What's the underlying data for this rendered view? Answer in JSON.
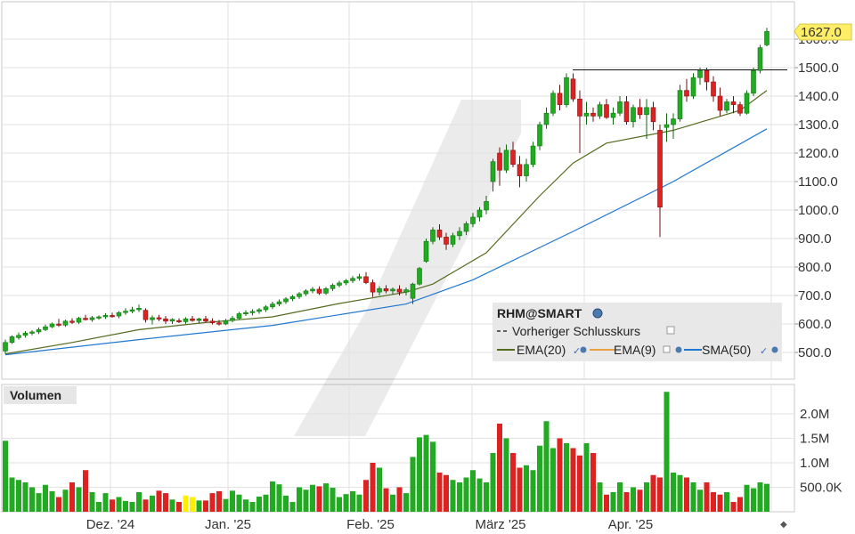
{
  "chart_data": [
    {
      "type": "candlestick",
      "title": "",
      "ylim": [
        470,
        1660
      ],
      "y_ticks": [
        "500.0",
        "600.0",
        "700.0",
        "800.0",
        "900.0",
        "1000.0",
        "1100.0",
        "1200.0",
        "1300.0",
        "1400.0",
        "1500.0",
        "1600.0"
      ],
      "last_price_label": "1627.0",
      "previous_close_level": 1492,
      "x_labels": [
        "Dez. '24",
        "Jan. '25",
        "Feb. '25",
        "März '25",
        "Apr. '25"
      ],
      "series": [
        {
          "name": "RHM@SMART",
          "columns": [
            "open",
            "high",
            "low",
            "close"
          ],
          "candles": [
            [
              505,
              545,
              495,
              535
            ],
            [
              535,
              560,
              530,
              555
            ],
            [
              552,
              570,
              545,
              560
            ],
            [
              560,
              575,
              552,
              568
            ],
            [
              568,
              578,
              560,
              572
            ],
            [
              572,
              588,
              565,
              580
            ],
            [
              580,
              598,
              575,
              590
            ],
            [
              590,
              605,
              585,
              600
            ],
            [
              600,
              618,
              590,
              596
            ],
            [
              596,
              615,
              590,
              610
            ],
            [
              610,
              620,
              600,
              606
            ],
            [
              606,
              625,
              600,
              620
            ],
            [
              620,
              632,
              612,
              615
            ],
            [
              615,
              628,
              608,
              622
            ],
            [
              622,
              630,
              615,
              625
            ],
            [
              625,
              638,
              618,
              630
            ],
            [
              630,
              640,
              622,
              628
            ],
            [
              628,
              645,
              620,
              640
            ],
            [
              640,
              655,
              632,
              645
            ],
            [
              645,
              660,
              638,
              650
            ],
            [
              650,
              668,
              642,
              655
            ],
            [
              648,
              655,
              605,
              615
            ],
            [
              615,
              630,
              598,
              622
            ],
            [
              622,
              632,
              610,
              618
            ],
            [
              618,
              628,
              600,
              610
            ],
            [
              610,
              620,
              600,
              616
            ],
            [
              612,
              620,
              603,
              608
            ],
            [
              608,
              624,
              600,
              618
            ],
            [
              618,
              628,
              608,
              612
            ],
            [
              612,
              622,
              602,
              618
            ],
            [
              618,
              628,
              606,
              610
            ],
            [
              610,
              620,
              598,
              604
            ],
            [
              604,
              614,
              594,
              600
            ],
            [
              600,
              618,
              596,
              612
            ],
            [
              612,
              628,
              606,
              620
            ],
            [
              620,
              642,
              614,
              636
            ],
            [
              636,
              648,
              628,
              640
            ],
            [
              640,
              652,
              630,
              644
            ],
            [
              644,
              656,
              636,
              650
            ],
            [
              650,
              666,
              642,
              660
            ],
            [
              660,
              678,
              652,
              670
            ],
            [
              670,
              686,
              662,
              678
            ],
            [
              678,
              694,
              670,
              688
            ],
            [
              688,
              702,
              680,
              696
            ],
            [
              696,
              712,
              688,
              706
            ],
            [
              706,
              722,
              698,
              716
            ],
            [
              716,
              730,
              708,
              722
            ],
            [
              722,
              732,
              702,
              708
            ],
            [
              708,
              730,
              702,
              724
            ],
            [
              724,
              742,
              716,
              736
            ],
            [
              736,
              752,
              728,
              744
            ],
            [
              744,
              758,
              736,
              752
            ],
            [
              752,
              768,
              744,
              760
            ],
            [
              760,
              776,
              752,
              766
            ],
            [
              766,
              782,
              740,
              745
            ],
            [
              745,
              756,
              695,
              712
            ],
            [
              712,
              732,
              700,
              724
            ],
            [
              724,
              736,
              708,
              716
            ],
            [
              716,
              728,
              704,
              722
            ],
            [
              722,
              736,
              700,
              712
            ],
            [
              712,
              728,
              700,
              720
            ],
            [
              690,
              745,
              670,
              740
            ],
            [
              740,
              800,
              735,
              795
            ],
            [
              820,
              900,
              815,
              890
            ],
            [
              890,
              940,
              880,
              930
            ],
            [
              930,
              950,
              895,
              905
            ],
            [
              905,
              920,
              860,
              880
            ],
            [
              880,
              920,
              870,
              910
            ],
            [
              910,
              940,
              895,
              925
            ],
            [
              925,
              960,
              912,
              952
            ],
            [
              952,
              990,
              940,
              975
            ],
            [
              975,
              1010,
              960,
              1000
            ],
            [
              1000,
              1050,
              985,
              1030
            ],
            [
              1100,
              1180,
              1065,
              1170
            ],
            [
              1200,
              1220,
              1085,
              1140
            ],
            [
              1140,
              1230,
              1130,
              1210
            ],
            [
              1210,
              1240,
              1150,
              1160
            ],
            [
              1160,
              1190,
              1080,
              1120
            ],
            [
              1120,
              1180,
              1100,
              1160
            ],
            [
              1160,
              1240,
              1150,
              1225
            ],
            [
              1225,
              1310,
              1210,
              1300
            ],
            [
              1300,
              1360,
              1285,
              1340
            ],
            [
              1340,
              1420,
              1330,
              1410
            ],
            [
              1410,
              1440,
              1350,
              1370
            ],
            [
              1370,
              1480,
              1360,
              1465
            ],
            [
              1460,
              1480,
              1380,
              1390
            ],
            [
              1390,
              1420,
              1200,
              1330
            ],
            [
              1330,
              1380,
              1300,
              1340
            ],
            [
              1340,
              1360,
              1310,
              1330
            ],
            [
              1330,
              1380,
              1320,
              1370
            ],
            [
              1370,
              1390,
              1320,
              1325
            ],
            [
              1325,
              1360,
              1300,
              1340
            ],
            [
              1340,
              1400,
              1330,
              1380
            ],
            [
              1380,
              1400,
              1300,
              1310
            ],
            [
              1310,
              1370,
              1290,
              1360
            ],
            [
              1360,
              1390,
              1320,
              1335
            ],
            [
              1335,
              1390,
              1250,
              1360
            ],
            [
              1360,
              1380,
              1280,
              1310
            ],
            [
              1280,
              1300,
              905,
              1010
            ],
            [
              1290,
              1340,
              1240,
              1300
            ],
            [
              1300,
              1340,
              1250,
              1320
            ],
            [
              1320,
              1440,
              1310,
              1420
            ],
            [
              1420,
              1460,
              1380,
              1400
            ],
            [
              1400,
              1480,
              1390,
              1465
            ],
            [
              1465,
              1500,
              1440,
              1490
            ],
            [
              1490,
              1500,
              1420,
              1450
            ],
            [
              1450,
              1470,
              1380,
              1400
            ],
            [
              1400,
              1430,
              1330,
              1350
            ],
            [
              1350,
              1390,
              1340,
              1380
            ],
            [
              1380,
              1400,
              1340,
              1370
            ],
            [
              1370,
              1380,
              1330,
              1340
            ],
            [
              1340,
              1420,
              1335,
              1410
            ],
            [
              1410,
              1500,
              1400,
              1490
            ],
            [
              1490,
              1580,
              1480,
              1570
            ],
            [
              1580,
              1640,
              1575,
              1627
            ]
          ]
        },
        {
          "name": "Vorheriger Schlusskurs",
          "style": "dashed"
        },
        {
          "name": "EMA(20)",
          "color": "#556b1e",
          "x_index": [
            0,
            10,
            20,
            30,
            40,
            50,
            60,
            64,
            72,
            80,
            85,
            90,
            100,
            105,
            110,
            114
          ],
          "values": [
            495,
            535,
            580,
            605,
            625,
            672,
            712,
            740,
            850,
            1050,
            1165,
            1235,
            1280,
            1315,
            1350,
            1420
          ]
        },
        {
          "name": "EMA(9)",
          "color": "#e8a040"
        },
        {
          "name": "SMA(50)",
          "color": "#1f77d0",
          "x_index": [
            0,
            20,
            40,
            60,
            70,
            85,
            100,
            114
          ],
          "values": [
            492,
            545,
            595,
            670,
            755,
            925,
            1100,
            1285
          ]
        }
      ]
    },
    {
      "type": "bar",
      "title": "Volumen",
      "y_ticks": [
        "500.0K",
        "1.0M",
        "1.5M",
        "2.0M"
      ],
      "ylim": [
        0,
        2500000
      ],
      "values": [
        1450000,
        700000,
        650000,
        600000,
        500000,
        380000,
        550000,
        420000,
        300000,
        450000,
        600000,
        500000,
        850000,
        400000,
        200000,
        380000,
        250000,
        300000,
        220000,
        200000,
        400000,
        250000,
        330000,
        430000,
        380000,
        250000,
        200000,
        330000,
        300000,
        230000,
        230000,
        380000,
        420000,
        260000,
        430000,
        350000,
        250000,
        200000,
        310000,
        350000,
        620000,
        560000,
        330000,
        200000,
        500000,
        450000,
        550000,
        520000,
        580000,
        490000,
        300000,
        360000,
        420000,
        350000,
        650000,
        1000000,
        900000,
        480000,
        350000,
        500000,
        380000,
        1120000,
        1520000,
        1570000,
        1430000,
        800000,
        750000,
        650000,
        600000,
        700000,
        850000,
        680000,
        600000,
        1200000,
        1800000,
        1500000,
        1200000,
        900000,
        950000,
        850000,
        1350000,
        1850000,
        1300000,
        1500000,
        1400000,
        1300000,
        1150000,
        1400000,
        1200000,
        600000,
        350000,
        400000,
        600000,
        400000,
        500000,
        450000,
        600000,
        750000,
        700000,
        2450000,
        800000,
        750000,
        700000,
        600000,
        450000,
        600000,
        400000,
        350000,
        400000,
        200000,
        300000,
        550000,
        480000,
        600000,
        570000
      ],
      "up_color": "#22aa22",
      "down_color": "#dd2222",
      "flat_color": "#ffee00"
    }
  ],
  "legend": {
    "symbol": "RHM@SMART",
    "prev_close": "Vorheriger Schlusskurs",
    "ema20": "EMA(20)",
    "ema9": "EMA(9)",
    "sma50": "SMA(50)"
  },
  "volume_title": "Volumen",
  "colors": {
    "up": "#22aa22",
    "down": "#dd2222",
    "price_tag": "#ffee66",
    "grid": "#dddddd",
    "legend_bg": "#e6e6e6"
  }
}
